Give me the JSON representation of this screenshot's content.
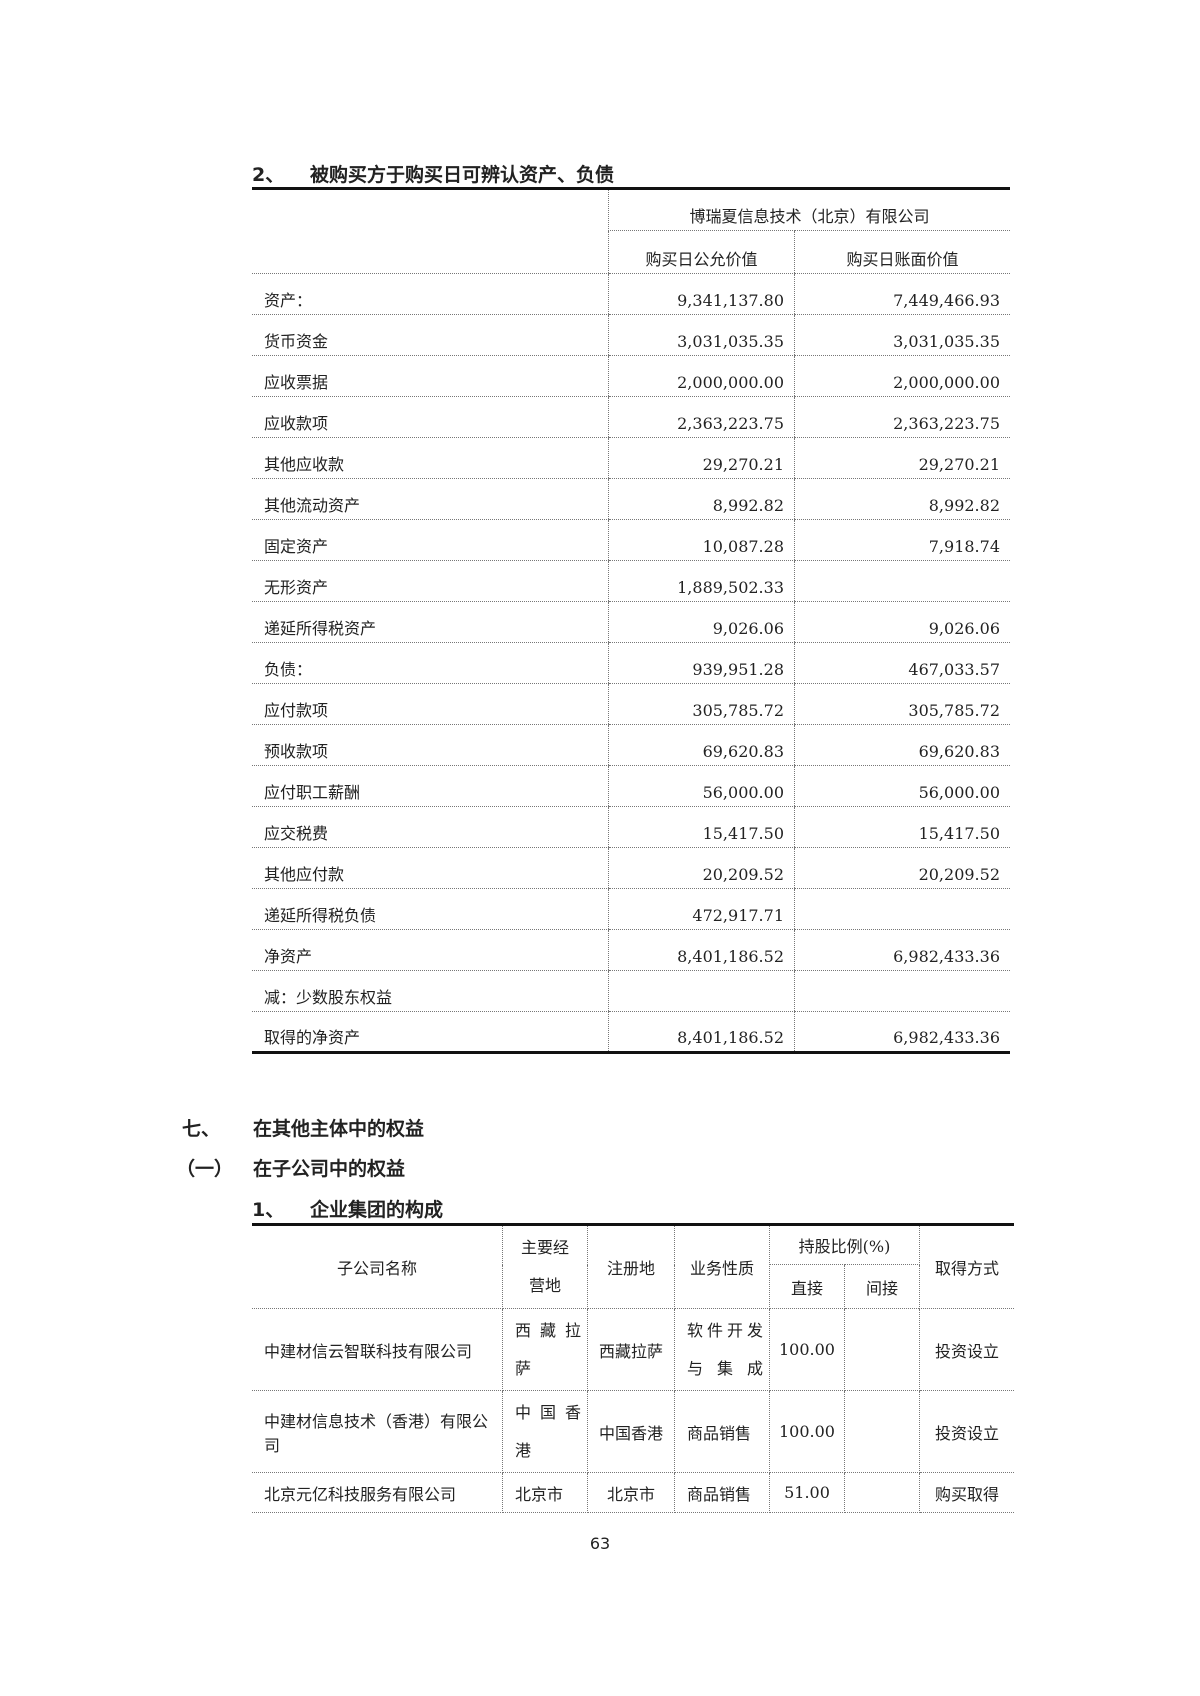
{
  "section2": {
    "number": "2、",
    "title": "被购买方于购买日可辨认资产、负债"
  },
  "table1": {
    "company": "博瑞夏信息技术（北京）有限公司",
    "headers": [
      "购买日公允价值",
      "购买日账面价值"
    ],
    "rows": [
      [
        "资产：",
        "9,341,137.80",
        "7,449,466.93"
      ],
      [
        "货币资金",
        "3,031,035.35",
        "3,031,035.35"
      ],
      [
        "应收票据",
        "2,000,000.00",
        "2,000,000.00"
      ],
      [
        "应收款项",
        "2,363,223.75",
        "2,363,223.75"
      ],
      [
        "其他应收款",
        "29,270.21",
        "29,270.21"
      ],
      [
        "其他流动资产",
        "8,992.82",
        "8,992.82"
      ],
      [
        "固定资产",
        "10,087.28",
        "7,918.74"
      ],
      [
        "无形资产",
        "1,889,502.33",
        ""
      ],
      [
        "递延所得税资产",
        "9,026.06",
        "9,026.06"
      ],
      [
        "负债：",
        "939,951.28",
        "467,033.57"
      ],
      [
        "应付款项",
        "305,785.72",
        "305,785.72"
      ],
      [
        "预收款项",
        "69,620.83",
        "69,620.83"
      ],
      [
        "应付职工薪酬",
        "56,000.00",
        "56,000.00"
      ],
      [
        "应交税费",
        "15,417.50",
        "15,417.50"
      ],
      [
        "其他应付款",
        "20,209.52",
        "20,209.52"
      ],
      [
        "递延所得税负债",
        "472,917.71",
        ""
      ],
      [
        "净资产",
        "8,401,186.52",
        "6,982,433.36"
      ],
      [
        "减：少数股东权益",
        "",
        ""
      ],
      [
        "取得的净资产",
        "8,401,186.52",
        "6,982,433.36"
      ]
    ]
  },
  "section7": {
    "number": "七、",
    "title": "在其他主体中的权益"
  },
  "section7_1": {
    "number": "（一）",
    "title": "在子公司中的权益"
  },
  "section7_1_1": {
    "number": "1、",
    "title": "企业集团的构成"
  },
  "table2": {
    "headers": {
      "name": "子公司名称",
      "main_place_a": "主要经",
      "main_place_b": "营地",
      "reg": "注册地",
      "business": "业务性质",
      "share": "持股比例(%)",
      "direct": "直接",
      "indirect": "间接",
      "method": "取得方式"
    },
    "rows": [
      {
        "name": "中建材信云智联科技有限公司",
        "main_a": "西藏拉",
        "main_b": "萨",
        "reg": "西藏拉萨",
        "bus_a": "软件开发",
        "bus_b": "与集成",
        "direct": "100.00",
        "indirect": "",
        "method": "投资设立"
      },
      {
        "name": "中建材信息技术（香港）有限公司",
        "main_a": "中国香",
        "main_b": "港",
        "reg": "中国香港",
        "bus_a": "商品销售",
        "bus_b": "",
        "direct": "100.00",
        "indirect": "",
        "method": "投资设立"
      },
      {
        "name": "北京元亿科技服务有限公司",
        "main_a": "北京市",
        "main_b": "",
        "reg": "北京市",
        "bus_a": "商品销售",
        "bus_b": "",
        "direct": "51.00",
        "indirect": "",
        "method": "购买取得"
      }
    ]
  },
  "page_number": "63"
}
